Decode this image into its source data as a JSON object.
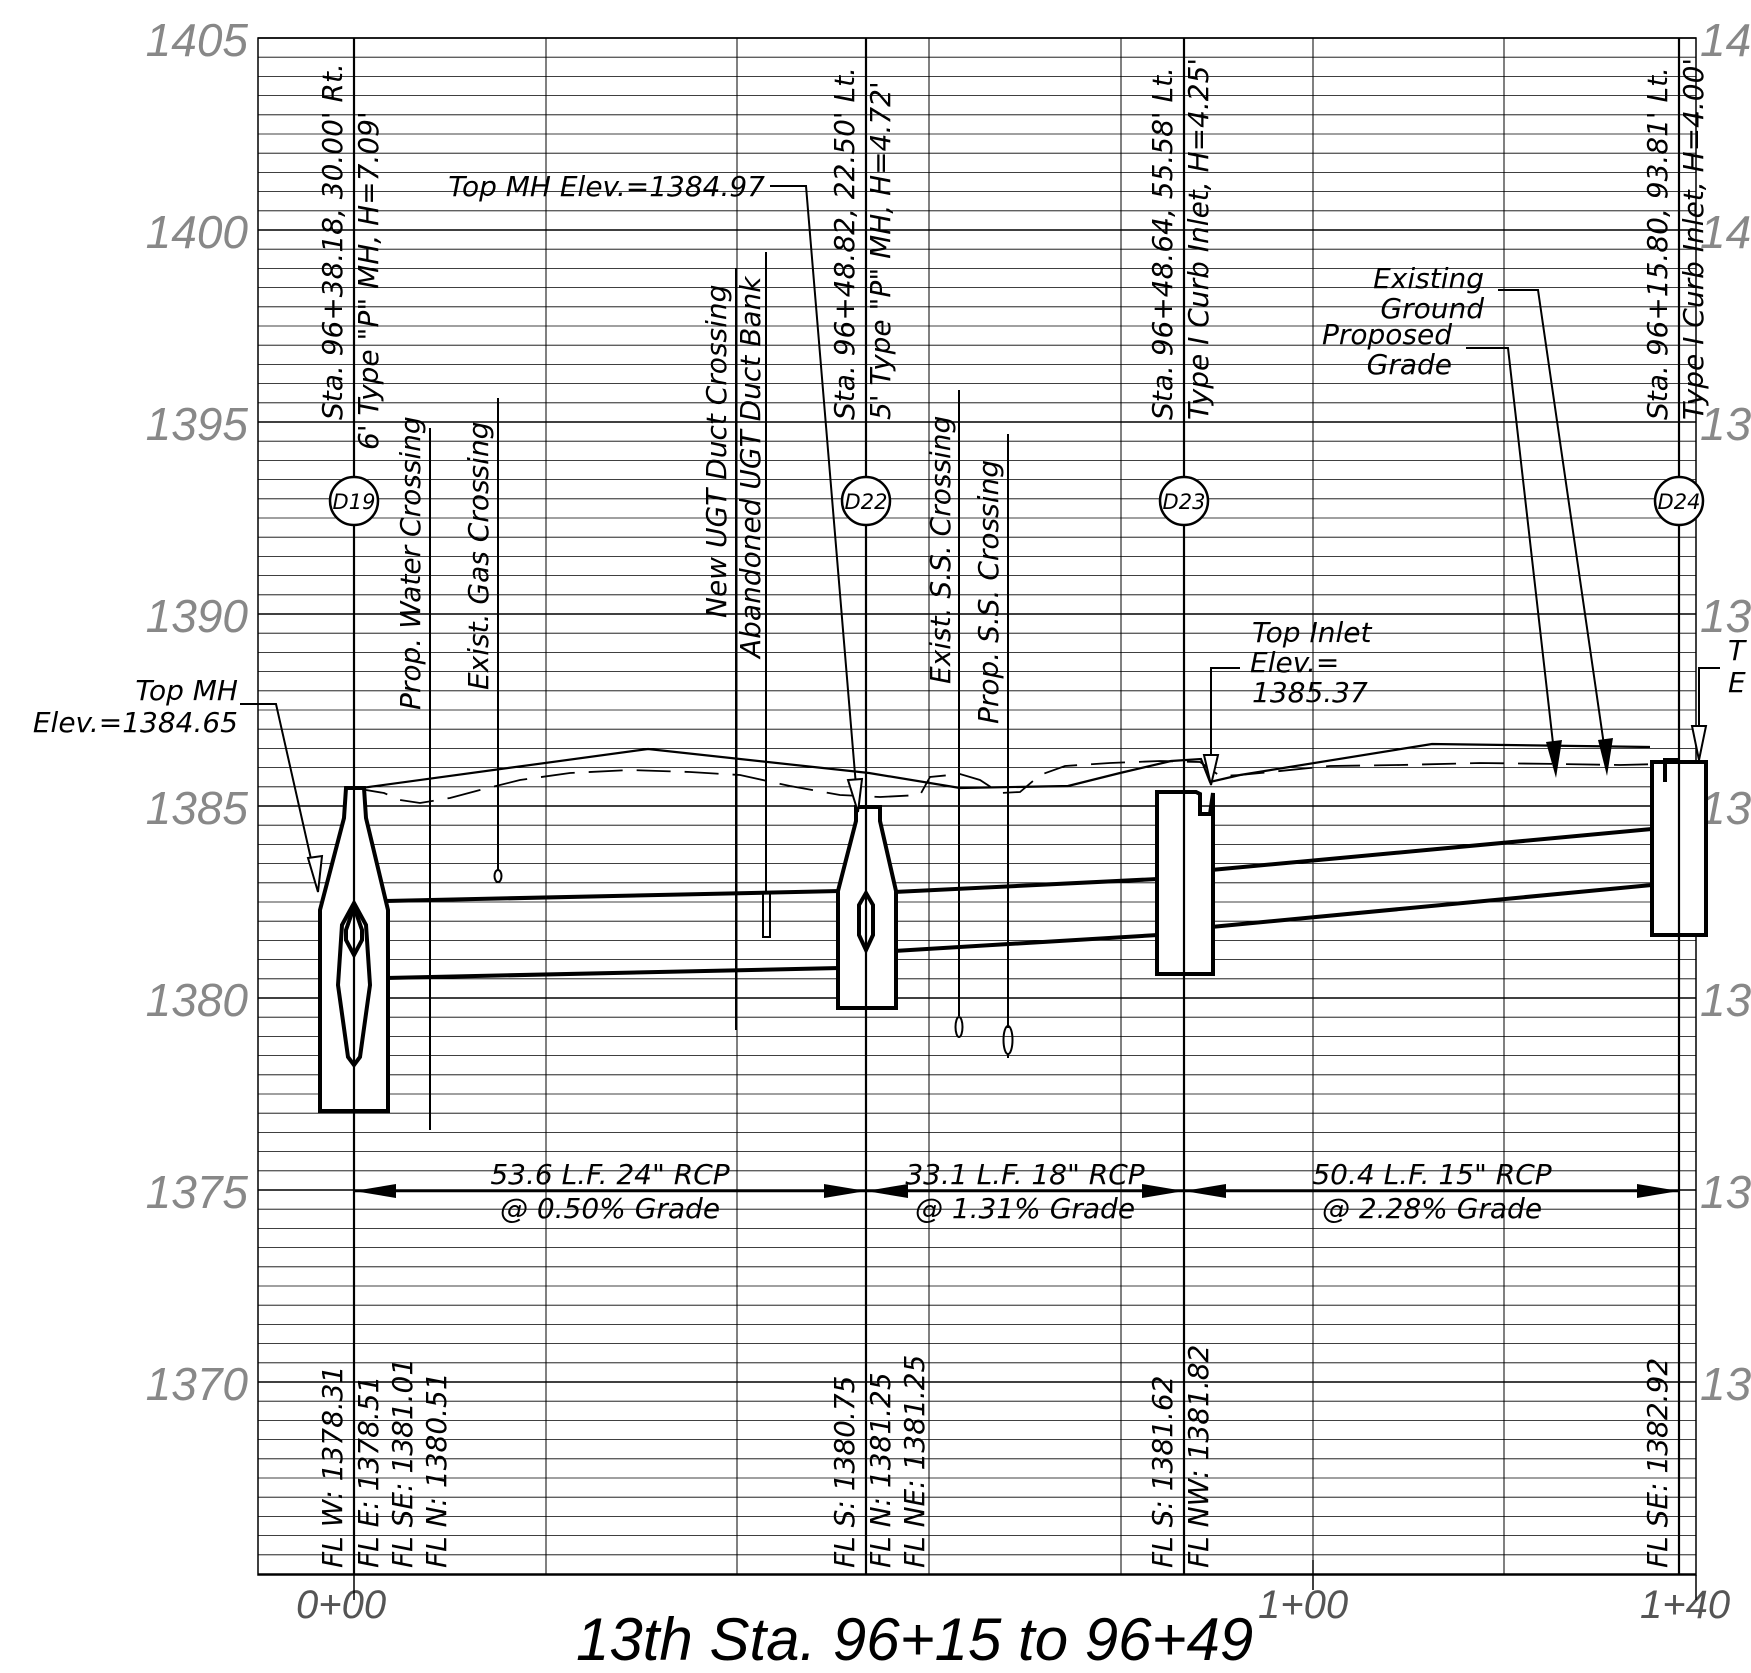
{
  "title": "13th Sta. 96+15 to 96+49",
  "elevation_labels": [
    "1405",
    "1400",
    "1395",
    "1390",
    "1385",
    "1380",
    "1375",
    "1370"
  ],
  "elevation_labels_right": [
    "14",
    "14",
    "13",
    "13",
    "13",
    "13",
    "13",
    "13"
  ],
  "station_labels": [
    "0+00",
    "1+00",
    "1+40"
  ],
  "structures": [
    {
      "id": "D19",
      "station": "Sta. 96+38.18, 30.00' Rt.",
      "desc": "6' Type \"P\" MH, H=7.09'",
      "fl": [
        "FL W: 1378.31",
        "FL E: 1378.51",
        "FL SE: 1381.01",
        "FL N: 1380.51"
      ]
    },
    {
      "id": "D22",
      "station": "Sta. 96+48.82, 22.50' Lt.",
      "desc": "5' Type \"P\" MH, H=4.72'",
      "fl": [
        "FL S: 1380.75",
        "FL N: 1381.25",
        "FL NE: 1381.25"
      ]
    },
    {
      "id": "D23",
      "station": "Sta. 96+48.64, 55.58' Lt.",
      "desc": "Type I Curb Inlet, H=4.25'",
      "fl": [
        "FL S: 1381.62",
        "FL NW: 1381.82"
      ]
    },
    {
      "id": "D24",
      "station": "Sta. 96+15.80, 93.81' Lt.",
      "desc": "Type I Curb Inlet, H=4.00'",
      "fl": [
        "FL SE: 1382.92"
      ]
    }
  ],
  "crossings": {
    "prop_water": "Prop. Water Crossing",
    "exist_gas": "Exist. Gas Crossing",
    "new_ugt": "New UGT Duct Crossing",
    "abandoned_ugt": "Abandoned UGT Duct Bank",
    "exist_ss": "Exist. S.S. Crossing",
    "prop_ss": "Prop. S.S. Crossing"
  },
  "callouts": {
    "top_mh_left_1": "Top MH",
    "top_mh_left_2": "Elev.=1384.65",
    "top_mh_mid": "Top MH Elev.=1384.97",
    "top_inlet_1": "Top Inlet",
    "top_inlet_2": "Elev.=",
    "top_inlet_3": "1385.37",
    "existing_1": "Existing",
    "existing_2": "Ground",
    "proposed_1": "Proposed",
    "proposed_2": "Grade",
    "right_edge_1": "T",
    "right_edge_2": "E"
  },
  "pipes": [
    {
      "line1": "53.6 L.F. 24\" RCP",
      "line2": "@ 0.50% Grade"
    },
    {
      "line1": "33.1 L.F. 18\" RCP",
      "line2": "@ 1.31% Grade"
    },
    {
      "line1": "50.4 L.F. 15\" RCP",
      "line2": "@ 2.28% Grade"
    }
  ]
}
